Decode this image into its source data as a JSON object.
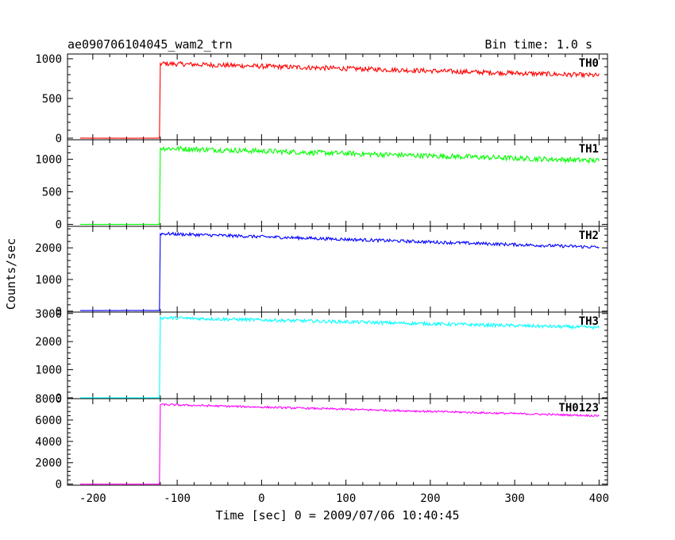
{
  "chart_data": {
    "type": "line",
    "title": "ae090706104045_wam2_trn",
    "subtitle": "Bin time: 1.0 s",
    "xlabel": "Time [sec] 0 = 2009/07/06 10:40:45",
    "ylabel": "Counts/sec",
    "xlim": [
      -230,
      410
    ],
    "x_ticks": [
      -200,
      -100,
      0,
      100,
      200,
      300,
      400
    ],
    "grid": false,
    "legend": "none",
    "x_start": -215,
    "x_end": 400,
    "panels": [
      {
        "name": "TH0",
        "color": "#ff0000",
        "ylim": [
          -20,
          1060
        ],
        "y_ticks": [
          0,
          500,
          1000
        ],
        "y_tick_labels": [
          "0",
          "500",
          "1000"
        ],
        "baseline": 0,
        "onset": -120,
        "start_level": 940,
        "end_level": 790,
        "noise": 30
      },
      {
        "name": "TH1",
        "color": "#00ff00",
        "ylim": [
          -30,
          1300
        ],
        "y_ticks": [
          0,
          500,
          1000
        ],
        "y_tick_labels": [
          "0",
          "500",
          "1000"
        ],
        "baseline": 0,
        "onset": -120,
        "start_level": 1170,
        "end_level": 980,
        "noise": 40
      },
      {
        "name": "TH2",
        "color": "#0000ff",
        "ylim": [
          -30,
          2680
        ],
        "y_ticks": [
          0,
          1000,
          2000
        ],
        "y_tick_labels": [
          "0",
          "1000",
          "2000"
        ],
        "baseline": 20,
        "onset": -120,
        "start_level": 2450,
        "end_level": 2020,
        "noise": 50
      },
      {
        "name": "TH3",
        "color": "#00ffff",
        "ylim": [
          -30,
          3050
        ],
        "y_ticks": [
          0,
          1000,
          2000,
          3000
        ],
        "y_tick_labels": [
          "0",
          "1000",
          "2000",
          "3000"
        ],
        "baseline": 0,
        "onset": -120,
        "start_level": 2850,
        "end_level": 2500,
        "noise": 60
      },
      {
        "name": "TH0123",
        "color": "#ff00ff",
        "ylim": [
          -100,
          8000
        ],
        "y_ticks": [
          0,
          2000,
          4000,
          6000,
          8000
        ],
        "y_tick_labels": [
          "0",
          "2000",
          "4000",
          "6000",
          "8000"
        ],
        "baseline": 0,
        "onset": -120,
        "start_level": 7450,
        "end_level": 6400,
        "noise": 90
      }
    ]
  }
}
